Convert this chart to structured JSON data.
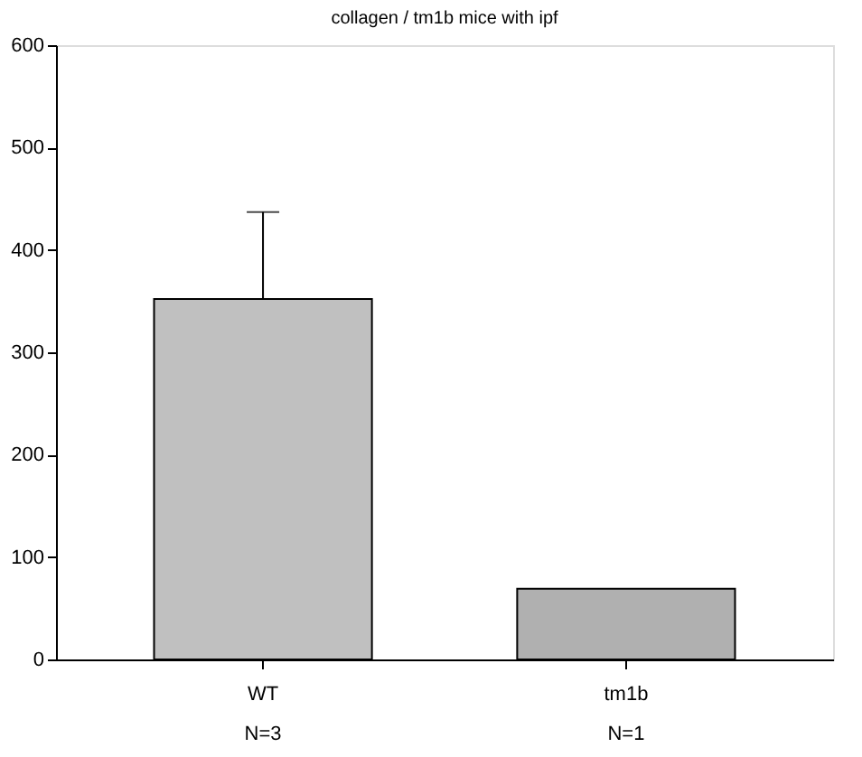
{
  "chart_data": {
    "type": "bar",
    "title": "collagen / tm1b mice with ipf",
    "categories": [
      "WT\nN=3",
      "tm1b\nN=1"
    ],
    "values": [
      352,
      69
    ],
    "colors": [
      "#c0c0c0",
      "#b0b0b0"
    ],
    "errors": [
      [
        352,
        437
      ],
      null
    ],
    "ylim": [
      0,
      600
    ],
    "yticks": [
      0,
      100,
      200,
      300,
      400,
      500,
      600
    ],
    "grid": false
  }
}
